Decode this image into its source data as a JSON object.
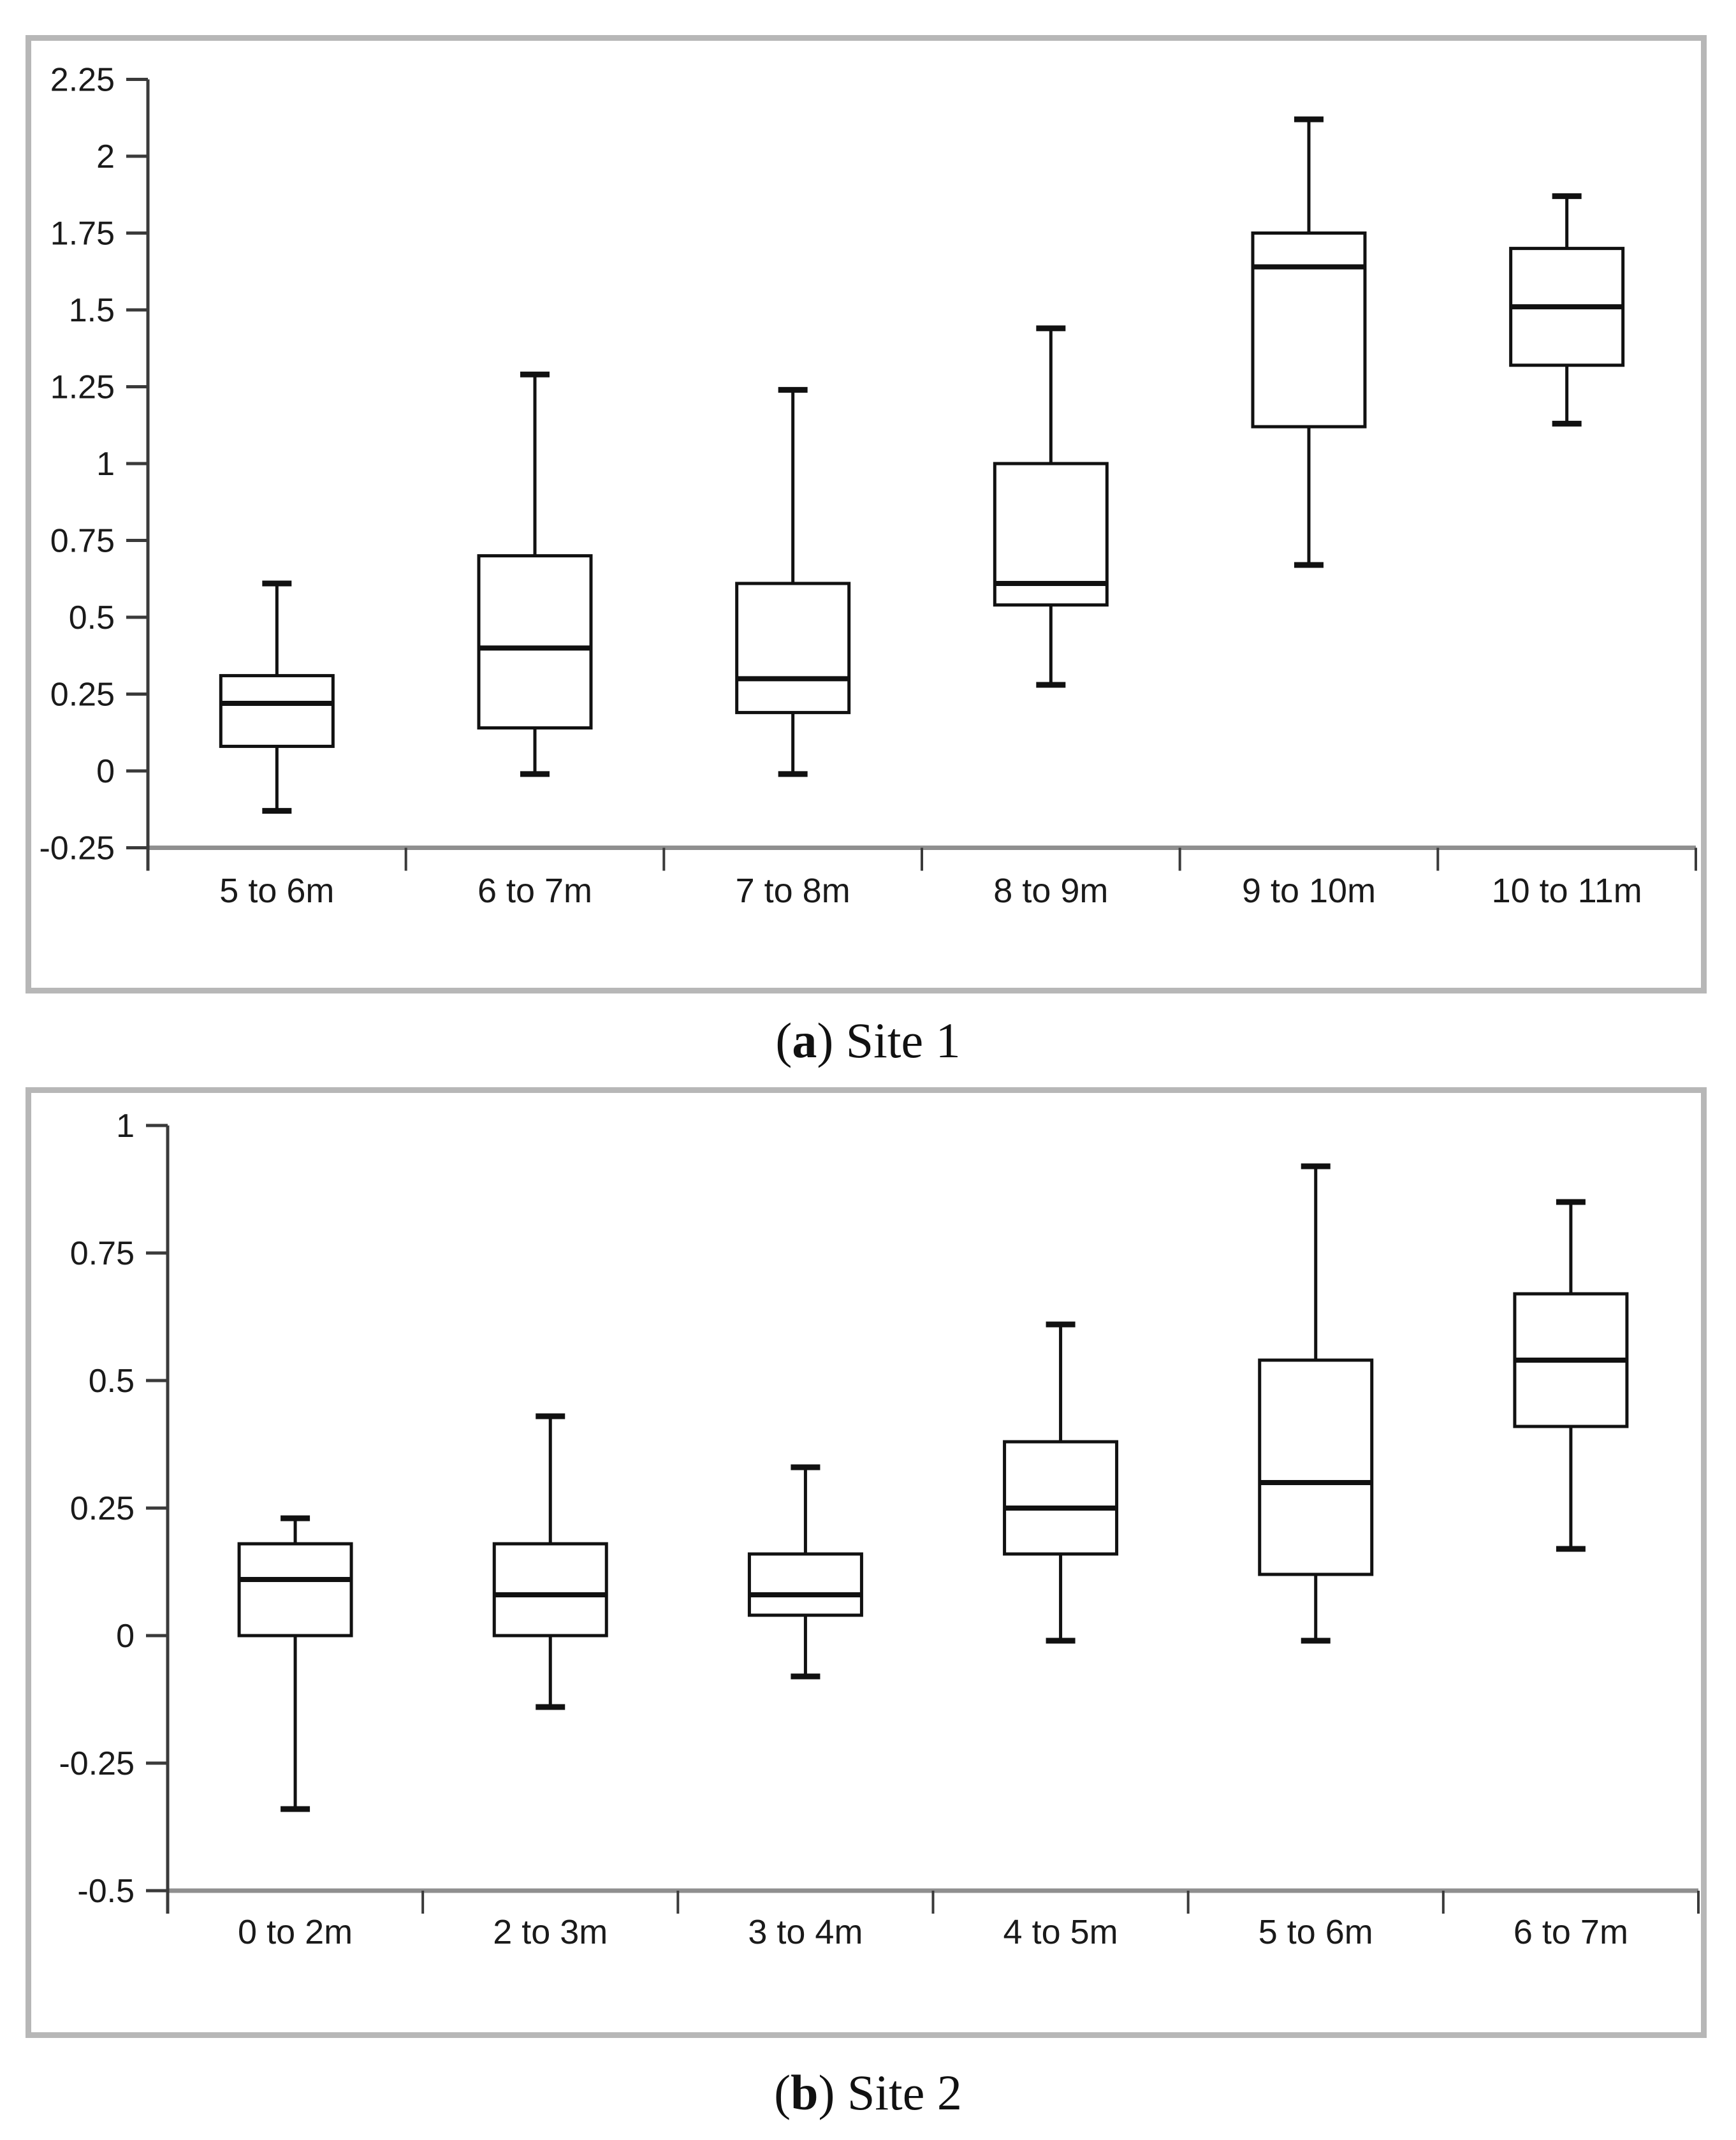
{
  "page": {
    "background": "#ffffff"
  },
  "colors": {
    "frame_border": "#b7b7b7",
    "box_stroke": "#111111",
    "y_axis": "#3a3a3a",
    "x_axis": "#8f8f8f",
    "text": "#1a1a1a"
  },
  "panels": [
    {
      "caption": {
        "open": "(",
        "letter": "a",
        "rest": ") Site 1"
      }
    },
    {
      "caption": {
        "open": "(",
        "letter": "b",
        "rest": ") Site 2"
      }
    }
  ],
  "chart_data": [
    {
      "type": "box",
      "title": "(a) Site 1",
      "categories": [
        "5 to 6m",
        "6 to 7m",
        "7 to 8m",
        "8 to 9m",
        "9 to 10m",
        "10 to 11m"
      ],
      "series": [
        {
          "name": "box-whisker",
          "values": [
            {
              "min": -0.13,
              "q1": 0.08,
              "median": 0.22,
              "q3": 0.31,
              "max": 0.61
            },
            {
              "min": -0.01,
              "q1": 0.14,
              "median": 0.4,
              "q3": 0.7,
              "max": 1.29
            },
            {
              "min": -0.01,
              "q1": 0.19,
              "median": 0.3,
              "q3": 0.61,
              "max": 1.24
            },
            {
              "min": 0.28,
              "q1": 0.54,
              "median": 0.61,
              "q3": 1.0,
              "max": 1.44
            },
            {
              "min": 0.67,
              "q1": 1.12,
              "median": 1.64,
              "q3": 1.75,
              "max": 2.12
            },
            {
              "min": 1.13,
              "q1": 1.32,
              "median": 1.51,
              "q3": 1.7,
              "max": 1.87
            }
          ]
        }
      ],
      "ylim": [
        -0.25,
        2.25
      ],
      "yticks": [
        {
          "v": 2.25,
          "label": "2.25"
        },
        {
          "v": 2.0,
          "label": "2"
        },
        {
          "v": 1.75,
          "label": "1.75"
        },
        {
          "v": 1.5,
          "label": "1.5"
        },
        {
          "v": 1.25,
          "label": "1.25"
        },
        {
          "v": 1.0,
          "label": "1"
        },
        {
          "v": 0.75,
          "label": "0.75"
        },
        {
          "v": 0.5,
          "label": "0.5"
        },
        {
          "v": 0.25,
          "label": "0.25"
        },
        {
          "v": 0.0,
          "label": "0"
        },
        {
          "v": -0.25,
          "label": "-0.25"
        }
      ],
      "xlabel": "",
      "ylabel": "",
      "grid": false,
      "legend": false
    },
    {
      "type": "box",
      "title": "(b) Site 2",
      "categories": [
        "0 to 2m",
        "2 to 3m",
        "3 to 4m",
        "4 to 5m",
        "5 to 6m",
        "6 to 7m"
      ],
      "series": [
        {
          "name": "box-whisker",
          "values": [
            {
              "min": -0.34,
              "q1": 0.0,
              "median": 0.11,
              "q3": 0.18,
              "max": 0.23
            },
            {
              "min": -0.14,
              "q1": 0.0,
              "median": 0.08,
              "q3": 0.18,
              "max": 0.43
            },
            {
              "min": -0.08,
              "q1": 0.04,
              "median": 0.08,
              "q3": 0.16,
              "max": 0.33
            },
            {
              "min": -0.01,
              "q1": 0.16,
              "median": 0.25,
              "q3": 0.38,
              "max": 0.61
            },
            {
              "min": -0.01,
              "q1": 0.12,
              "median": 0.3,
              "q3": 0.54,
              "max": 0.92
            },
            {
              "min": 0.17,
              "q1": 0.41,
              "median": 0.54,
              "q3": 0.67,
              "max": 0.85
            }
          ]
        }
      ],
      "ylim": [
        -0.5,
        1.0
      ],
      "yticks": [
        {
          "v": 1.0,
          "label": "1"
        },
        {
          "v": 0.75,
          "label": "0.75"
        },
        {
          "v": 0.5,
          "label": "0.5"
        },
        {
          "v": 0.25,
          "label": "0.25"
        },
        {
          "v": 0.0,
          "label": "0"
        },
        {
          "v": -0.25,
          "label": "-0.25"
        },
        {
          "v": -0.5,
          "label": "-0.5"
        }
      ],
      "xlabel": "",
      "ylabel": "",
      "grid": false,
      "legend": false
    }
  ]
}
